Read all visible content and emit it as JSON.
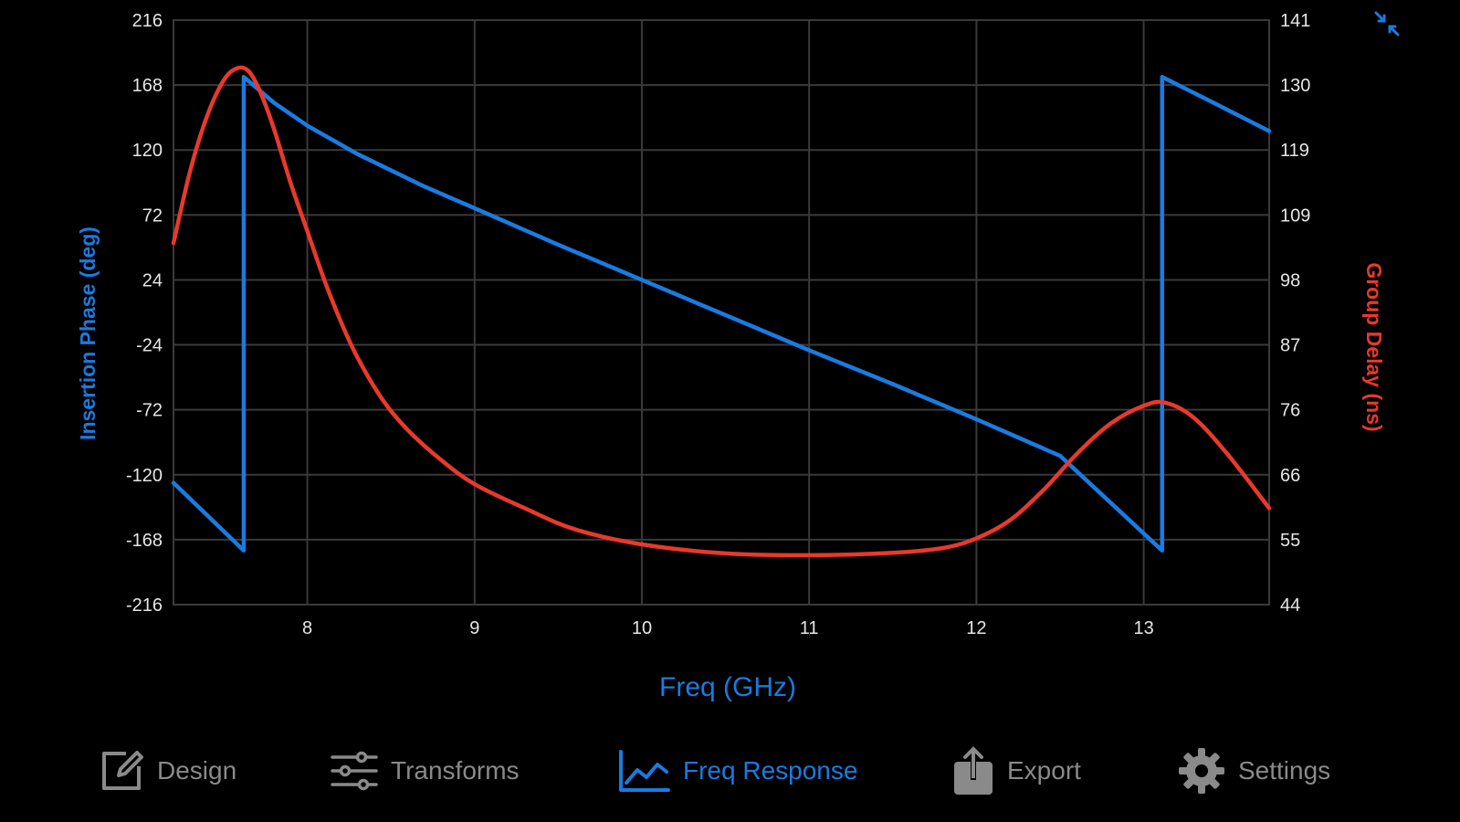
{
  "colors": {
    "background": "#000000",
    "grid": "#3a3a3a",
    "phase": "#1a7be0",
    "delay": "#e8392c",
    "tick_text": "#e6e6e6",
    "tab_inactive": "#8a8a8a",
    "tab_active": "#1a7be0"
  },
  "collapse_button": {
    "icon": "collapse-arrows-icon"
  },
  "chart_data": {
    "type": "line",
    "grid": true,
    "xlabel": "Freq (GHz)",
    "ylabel_left": "Insertion Phase (deg)",
    "ylabel_right": "Group Delay (ns)",
    "xlim": [
      7.2,
      13.75
    ],
    "ylim_left": [
      -216,
      216
    ],
    "ylim_right": [
      44,
      141
    ],
    "x_ticks": [
      "8",
      "9",
      "10",
      "11",
      "12",
      "13"
    ],
    "y_left_ticks": [
      "216",
      "168",
      "120",
      "72",
      "24",
      "-24",
      "-72",
      "-120",
      "-168",
      "-216"
    ],
    "y_right_ticks": [
      "141",
      "130",
      "119",
      "109",
      "98",
      "87",
      "76",
      "66",
      "55",
      "44"
    ],
    "series": [
      {
        "name": "Insertion Phase (deg)",
        "axis": "left",
        "color": "#1a7be0",
        "x": [
          7.2,
          7.62,
          7.62,
          7.8,
          8.0,
          8.3,
          8.7,
          9.0,
          9.5,
          10.0,
          10.5,
          11.0,
          11.5,
          12.0,
          12.5,
          13.11,
          13.11,
          13.4,
          13.75
        ],
        "y": [
          -126,
          -176,
          174,
          155,
          138,
          117,
          93,
          77,
          50,
          24,
          -2,
          -28,
          -53,
          -79,
          -106,
          -176,
          174,
          156,
          134
        ]
      },
      {
        "name": "Group Delay (ns)",
        "axis": "right",
        "color": "#e8392c",
        "x": [
          7.2,
          7.3,
          7.4,
          7.5,
          7.58,
          7.65,
          7.72,
          7.8,
          7.9,
          8.0,
          8.1,
          8.2,
          8.3,
          8.45,
          8.6,
          8.8,
          9.0,
          9.3,
          9.6,
          10.0,
          10.5,
          11.0,
          11.5,
          11.8,
          12.0,
          12.2,
          12.4,
          12.6,
          12.8,
          13.0,
          13.13,
          13.3,
          13.5,
          13.75
        ],
        "y": [
          104,
          116,
          125,
          131,
          133,
          132.5,
          129,
          123,
          114,
          106,
          98,
          91,
          85,
          78,
          73,
          68,
          64,
          60,
          56.5,
          54,
          52.5,
          52.2,
          52.6,
          53.4,
          55,
          58,
          63,
          69,
          74,
          77,
          77.5,
          75,
          69,
          60
        ]
      }
    ]
  },
  "tabs": [
    {
      "label": "Design",
      "icon": "edit-square-icon",
      "active": false
    },
    {
      "label": "Transforms",
      "icon": "sliders-icon",
      "active": false
    },
    {
      "label": "Freq Response",
      "icon": "line-chart-icon",
      "active": true
    },
    {
      "label": "Export",
      "icon": "share-upload-icon",
      "active": false
    },
    {
      "label": "Settings",
      "icon": "gear-icon",
      "active": false
    }
  ]
}
